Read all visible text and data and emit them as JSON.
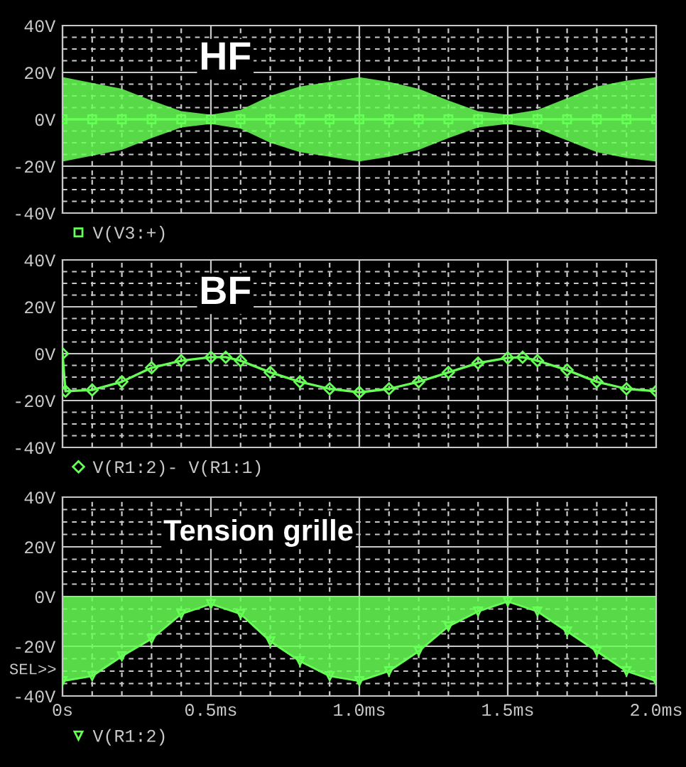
{
  "chart_data": [
    {
      "type": "line",
      "annotations": [
        "HF"
      ],
      "legend": "bottom",
      "marker": "square",
      "grid": true,
      "tick_labels": "y",
      "x": [
        0,
        0.1,
        0.2,
        0.3,
        0.4,
        0.5,
        0.6,
        0.7,
        0.8,
        0.9,
        1.0,
        1.1,
        1.2,
        1.3,
        1.4,
        1.5,
        1.6,
        1.7,
        1.8,
        1.9,
        2.0
      ],
      "series": [
        {
          "name": "V(V3:+)",
          "color": "#66ff55",
          "values": [
            0,
            0,
            0,
            0,
            0,
            0,
            0,
            0,
            0,
            0,
            0,
            0,
            0,
            0,
            0,
            0,
            0,
            0,
            0,
            0,
            0
          ],
          "upper": [
            18,
            15.5,
            13,
            8,
            3.5,
            2,
            4,
            10,
            14,
            16,
            18,
            16,
            13,
            8,
            3.5,
            2,
            4,
            9,
            14,
            16.5,
            18
          ],
          "lower": [
            -18,
            -15.5,
            -13,
            -8,
            -3.5,
            -2,
            -4,
            -10,
            -14,
            -16,
            -18,
            -16,
            -13,
            -8,
            -3.5,
            -2,
            -4,
            -9,
            -14,
            -16.5,
            -18
          ]
        }
      ],
      "xlim": [
        0,
        2.0
      ],
      "ylim": [
        -40,
        40
      ],
      "xticks": [
        0,
        {
          "value": 0.1,
          "label": null
        },
        {
          "value": 0.2,
          "label": null
        },
        {
          "value": 0.3,
          "label": null
        },
        {
          "value": 0.4,
          "label": null
        },
        0.5,
        {
          "value": 0.6,
          "label": null
        },
        {
          "value": 0.7,
          "label": null
        },
        {
          "value": 0.8,
          "label": null
        },
        {
          "value": 0.9,
          "label": null
        },
        1.0,
        {
          "value": 1.1,
          "label": null
        },
        {
          "value": 1.2,
          "label": null
        },
        {
          "value": 1.3,
          "label": null
        },
        {
          "value": 1.4,
          "label": null
        },
        1.5,
        {
          "value": 1.6,
          "label": null
        },
        {
          "value": 1.7,
          "label": null
        },
        {
          "value": 1.8,
          "label": null
        },
        {
          "value": 1.9,
          "label": null
        },
        2.0
      ],
      "yticks": [
        {
          "value": -40,
          "label": "-40V"
        },
        {
          "value": -35,
          "label": null
        },
        {
          "value": -30,
          "label": null
        },
        {
          "value": -25,
          "label": null
        },
        {
          "value": -20,
          "label": "-20V"
        },
        {
          "value": -15,
          "label": null
        },
        {
          "value": -10,
          "label": null
        },
        {
          "value": -5,
          "label": null
        },
        {
          "value": 0,
          "label": "0V"
        },
        {
          "value": 5,
          "label": null
        },
        {
          "value": 10,
          "label": null
        },
        {
          "value": 15,
          "label": null
        },
        {
          "value": 20,
          "label": "20V"
        },
        {
          "value": 25,
          "label": null
        },
        {
          "value": 30,
          "label": null
        },
        {
          "value": 35,
          "label": null
        },
        {
          "value": 40,
          "label": "40V"
        }
      ]
    },
    {
      "type": "line",
      "annotations": [
        "BF"
      ],
      "legend": "bottom",
      "marker": "diamond",
      "grid": true,
      "tick_labels": "y",
      "x": [
        0,
        0.01,
        0.1,
        0.2,
        0.3,
        0.4,
        0.5,
        0.55,
        0.6,
        0.7,
        0.8,
        0.9,
        1.0,
        1.1,
        1.2,
        1.3,
        1.4,
        1.5,
        1.55,
        1.6,
        1.7,
        1.8,
        1.9,
        2.0
      ],
      "series": [
        {
          "name": "V(R1:2)- V(R1:1)",
          "color": "#66ff55",
          "values": [
            0,
            -16,
            -15.5,
            -12,
            -6,
            -3,
            -1.5,
            -1.5,
            -3,
            -8,
            -12,
            -15,
            -16.5,
            -15,
            -12,
            -8,
            -4,
            -1.8,
            -1.5,
            -3,
            -7,
            -12,
            -15,
            -16
          ]
        }
      ],
      "xlim": [
        0,
        2.0
      ],
      "ylim": [
        -40,
        40
      ],
      "xticks": [
        0,
        {
          "value": 0.1,
          "label": null
        },
        {
          "value": 0.2,
          "label": null
        },
        {
          "value": 0.3,
          "label": null
        },
        {
          "value": 0.4,
          "label": null
        },
        0.5,
        {
          "value": 0.6,
          "label": null
        },
        {
          "value": 0.7,
          "label": null
        },
        {
          "value": 0.8,
          "label": null
        },
        {
          "value": 0.9,
          "label": null
        },
        1.0,
        {
          "value": 1.1,
          "label": null
        },
        {
          "value": 1.2,
          "label": null
        },
        {
          "value": 1.3,
          "label": null
        },
        {
          "value": 1.4,
          "label": null
        },
        1.5,
        {
          "value": 1.6,
          "label": null
        },
        {
          "value": 1.7,
          "label": null
        },
        {
          "value": 1.8,
          "label": null
        },
        {
          "value": 1.9,
          "label": null
        },
        2.0
      ],
      "yticks": [
        {
          "value": -40,
          "label": "-40V"
        },
        {
          "value": -35,
          "label": null
        },
        {
          "value": -30,
          "label": null
        },
        {
          "value": -25,
          "label": null
        },
        {
          "value": -20,
          "label": "-20V"
        },
        {
          "value": -15,
          "label": null
        },
        {
          "value": -10,
          "label": null
        },
        {
          "value": -5,
          "label": null
        },
        {
          "value": 0,
          "label": "0V"
        },
        {
          "value": 5,
          "label": null
        },
        {
          "value": 10,
          "label": null
        },
        {
          "value": 15,
          "label": null
        },
        {
          "value": 20,
          "label": "20V"
        },
        {
          "value": 25,
          "label": null
        },
        {
          "value": 30,
          "label": null
        },
        {
          "value": 35,
          "label": null
        },
        {
          "value": 40,
          "label": "40V"
        }
      ]
    },
    {
      "type": "area",
      "annotations": [
        "Tension grille",
        "SEL>>"
      ],
      "legend": "bottom",
      "marker": "triangle",
      "grid": true,
      "x": [
        0,
        0.1,
        0.2,
        0.3,
        0.4,
        0.5,
        0.6,
        0.7,
        0.8,
        0.9,
        1.0,
        1.1,
        1.2,
        1.3,
        1.4,
        1.5,
        1.6,
        1.7,
        1.8,
        1.9,
        2.0
      ],
      "series": [
        {
          "name": "V(R1:2)",
          "color": "#66ff55",
          "values": [
            -34,
            -32,
            -24,
            -17,
            -7,
            -3,
            -7,
            -18,
            -26,
            -32,
            -34,
            -30,
            -22,
            -12,
            -6,
            -2,
            -6,
            -14,
            -22,
            -30,
            -34
          ]
        }
      ],
      "xlim": [
        0,
        2.0
      ],
      "ylim": [
        -40,
        40
      ],
      "xticks": [
        {
          "value": 0,
          "label": "0s"
        },
        {
          "value": 0.1,
          "label": null
        },
        {
          "value": 0.2,
          "label": null
        },
        {
          "value": 0.3,
          "label": null
        },
        {
          "value": 0.4,
          "label": null
        },
        {
          "value": 0.5,
          "label": "0.5ms"
        },
        {
          "value": 0.6,
          "label": null
        },
        {
          "value": 0.7,
          "label": null
        },
        {
          "value": 0.8,
          "label": null
        },
        {
          "value": 0.9,
          "label": null
        },
        {
          "value": 1.0,
          "label": "1.0ms"
        },
        {
          "value": 1.1,
          "label": null
        },
        {
          "value": 1.2,
          "label": null
        },
        {
          "value": 1.3,
          "label": null
        },
        {
          "value": 1.4,
          "label": null
        },
        {
          "value": 1.5,
          "label": "1.5ms"
        },
        {
          "value": 1.6,
          "label": null
        },
        {
          "value": 1.7,
          "label": null
        },
        {
          "value": 1.8,
          "label": null
        },
        {
          "value": 1.9,
          "label": null
        },
        {
          "value": 2.0,
          "label": "2.0ms"
        }
      ],
      "yticks": [
        {
          "value": -40,
          "label": "-40V"
        },
        {
          "value": -35,
          "label": null
        },
        {
          "value": -30,
          "label": null
        },
        {
          "value": -25,
          "label": null
        },
        {
          "value": -20,
          "label": "-20V"
        },
        {
          "value": -15,
          "label": null
        },
        {
          "value": -10,
          "label": null
        },
        {
          "value": -5,
          "label": null
        },
        {
          "value": 0,
          "label": "0V"
        },
        {
          "value": 5,
          "label": null
        },
        {
          "value": 10,
          "label": null
        },
        {
          "value": 15,
          "label": null
        },
        {
          "value": 20,
          "label": "20V"
        },
        {
          "value": 25,
          "label": null
        },
        {
          "value": 30,
          "label": null
        },
        {
          "value": 35,
          "label": null
        },
        {
          "value": 40,
          "label": "40V"
        }
      ]
    }
  ]
}
